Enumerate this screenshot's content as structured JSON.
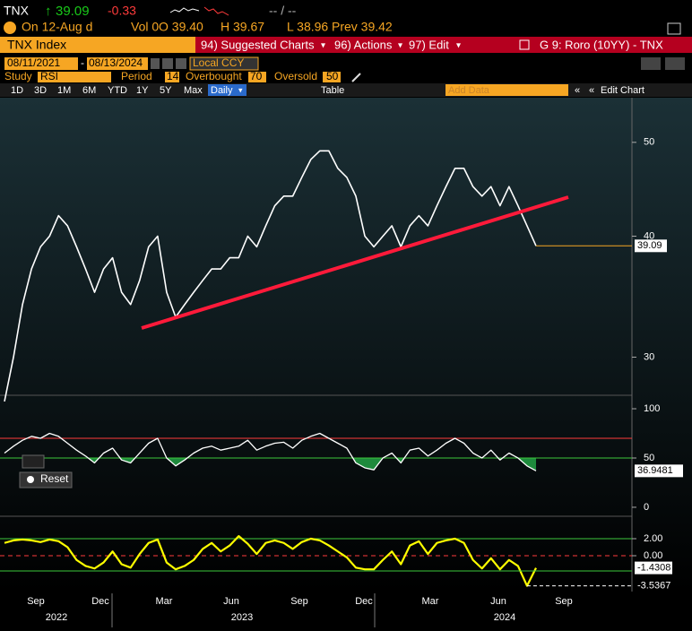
{
  "header": {
    "ticker": "TNX",
    "last": "39.09",
    "change": "-0.33",
    "bid_ask": "-- / --",
    "date": "On 12-Aug d",
    "volume": "Vol 0",
    "open": "O 39.40",
    "high": "H 39.67",
    "low": "L 38.96",
    "prev": "Prev 39.42"
  },
  "menu": {
    "security": "TNX Index",
    "suggested": "94) Suggested Charts",
    "actions": "96) Actions",
    "edit": "97) Edit",
    "chart_name": "G 9: Roro (10YY) - TNX"
  },
  "controls": {
    "start_date": "08/11/2021",
    "end_date": "08/13/2024",
    "currency": "Local CCY"
  },
  "study": {
    "label": "Study",
    "name": "RSI",
    "period_label": "Period",
    "period": 14,
    "overbought_label": "Overbought",
    "overbought": 70,
    "oversold_label": "Oversold",
    "oversold": 50
  },
  "toolbar": {
    "ranges": [
      "1D",
      "3D",
      "1M",
      "6M",
      "YTD",
      "1Y",
      "5Y",
      "Max"
    ],
    "frequency": "Daily",
    "table": "Table",
    "add_data": "Add Data",
    "edit_chart": "Edit Chart"
  },
  "price_panel": {
    "values": [
      27,
      30,
      34,
      37,
      39,
      40,
      42,
      41,
      39,
      37,
      35,
      37,
      38,
      35,
      34,
      36,
      39,
      40,
      35,
      33,
      34,
      35,
      36,
      37,
      37,
      38,
      38,
      40,
      39,
      41,
      43,
      44,
      44,
      46,
      48,
      49,
      49,
      47,
      46,
      44,
      40,
      39,
      40,
      41,
      39,
      41,
      42,
      41,
      43,
      45,
      47,
      47,
      45,
      44,
      45,
      43,
      45,
      43,
      41,
      39.09
    ],
    "last_label": "39.09",
    "ylim": [
      27.4,
      55.6
    ],
    "yticks": [
      50,
      40,
      30
    ],
    "log": true,
    "color": "#ffffff"
  },
  "rsi_panel": {
    "values": [
      55,
      62,
      68,
      72,
      70,
      75,
      72,
      65,
      58,
      52,
      45,
      55,
      60,
      48,
      45,
      55,
      65,
      70,
      50,
      42,
      48,
      55,
      60,
      62,
      58,
      60,
      62,
      68,
      58,
      62,
      65,
      66,
      60,
      68,
      72,
      75,
      70,
      65,
      60,
      45,
      40,
      38,
      50,
      55,
      45,
      58,
      60,
      52,
      58,
      65,
      70,
      65,
      55,
      50,
      58,
      48,
      55,
      50,
      42,
      36.9481
    ],
    "last_label": "36.9481",
    "ylim": [
      -5.5,
      107.3
    ],
    "yticks": [
      100,
      50,
      0
    ],
    "reset": "Reset",
    "color": "#ffffff"
  },
  "zscore_panel": {
    "values": [
      1.5,
      1.8,
      1.9,
      1.8,
      1.6,
      1.9,
      1.7,
      1.0,
      -0.5,
      -1.2,
      -1.5,
      -0.8,
      0.5,
      -1,
      -1.4,
      0.2,
      1.5,
      1.9,
      -0.8,
      -1.6,
      -1.2,
      -0.5,
      0.8,
      1.5,
      0.5,
      1.2,
      2.3,
      1.4,
      0.2,
      1.5,
      1.8,
      1.5,
      0.8,
      1.6,
      2.0,
      1.8,
      1.2,
      0.5,
      -0.2,
      -1.4,
      -1.6,
      -1.6,
      -0.5,
      0.5,
      -1,
      1.2,
      1.7,
      0.2,
      1.5,
      1.8,
      2.0,
      1.5,
      -0.5,
      -1.5,
      -0.3,
      -1.6,
      -0.5,
      -1.2,
      -3.5367,
      -1.4308
    ],
    "ylim": [
      -3.79,
      4.0
    ],
    "yticks": [
      {
        "value": 2,
        "label": "2.00"
      },
      {
        "value": 0,
        "label": "0.00"
      }
    ],
    "last_label": "-1.4308",
    "min_label": "-3.5367",
    "color": "#ffff00"
  },
  "x_axis": {
    "months": [
      "Sep",
      "Dec",
      "Mar",
      "Jun",
      "Sep",
      "Dec",
      "Mar",
      "Jun",
      "Sep"
    ],
    "years": [
      "2022",
      "2023",
      "2024"
    ]
  }
}
